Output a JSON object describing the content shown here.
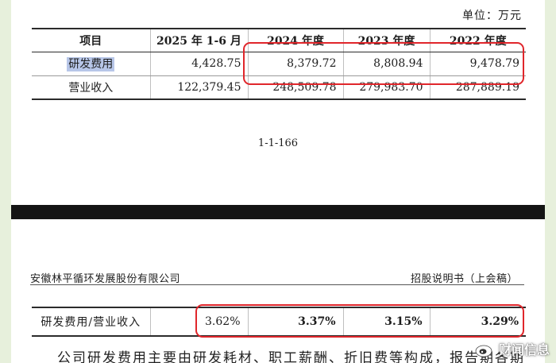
{
  "unit_label": "单位：万元",
  "fin_table": {
    "headers": [
      "项目",
      "2025 年 1-6 月",
      "2024 年度",
      "2023 年度",
      "2022 年度"
    ],
    "rows": [
      {
        "label": "研发费用",
        "values": [
          "4,428.75",
          "8,379.72",
          "8,808.94",
          "9,478.79"
        ]
      },
      {
        "label": "营业收入",
        "values": [
          "122,379.45",
          "248,509.78",
          "279,983.70",
          "287,889.19"
        ]
      }
    ]
  },
  "page_number": "1-1-166",
  "header": {
    "company": "安徽林平循环发展股份有限公司",
    "doc_type": "招股说明书（上会稿）"
  },
  "ratio_row": {
    "label": "研发费用/营业收入",
    "values": [
      "3.62%",
      "3.37%",
      "3.15%",
      "3.29%"
    ]
  },
  "cut_text": "公司研发费用主要由研发耗材、职工薪酬、折旧费等构成，报告期各期",
  "watermark": {
    "text": "财闻信息",
    "icon": "weibo-icon"
  },
  "colors": {
    "highlight_box": "#e0262b",
    "selection": "#b7c6e8",
    "background": "#e7f0dc"
  }
}
